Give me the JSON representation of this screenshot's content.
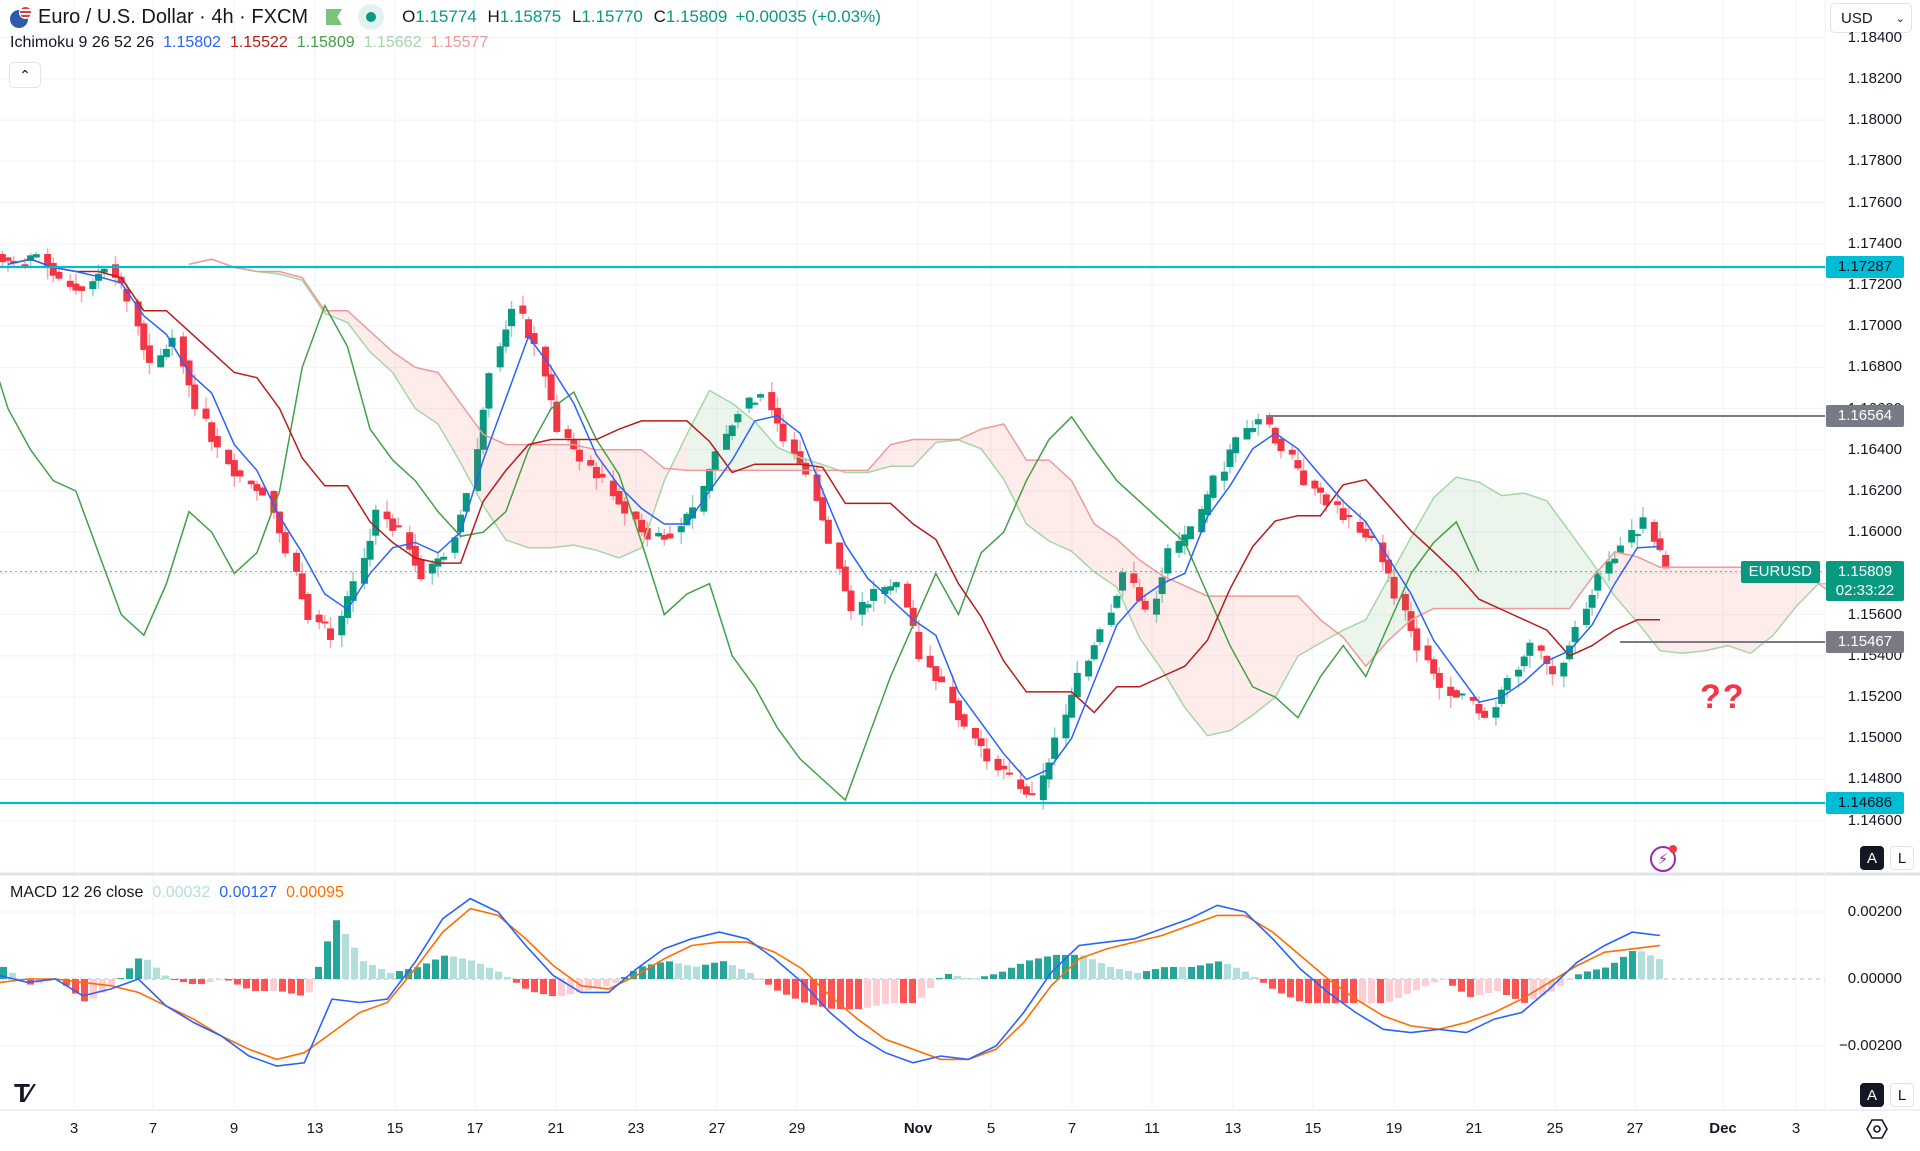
{
  "header": {
    "symbol_title": "Euro / U.S. Dollar · 4h · FXCM",
    "ohlc": {
      "o_label": "O",
      "o": "1.15774",
      "h_label": "H",
      "h": "1.15875",
      "l_label": "L",
      "l": "1.15770",
      "c_label": "C",
      "c": "1.15809"
    },
    "change": "+0.00035 (+0.03%)"
  },
  "ichimoku_legend": {
    "name": "Ichimoku 9 26 52 26",
    "conversion": "1.15802",
    "base": "1.15522",
    "lagging": "1.15809",
    "lead1": "1.15662",
    "lead2": "1.15577"
  },
  "macd_legend": {
    "name": "MACD 12 26 close",
    "histogram": "0.00032",
    "macd": "0.00127",
    "signal": "0.00095"
  },
  "currency_select": "USD",
  "collapse_icon": "chevron-up-icon",
  "symbol_label": "EURUSD",
  "last_price": "1.15809",
  "countdown": "02:33:22",
  "annotation_text": "??",
  "scale_buttons": {
    "auto": "A",
    "log": "L"
  },
  "colors": {
    "up": "#089981",
    "down": "#f23645",
    "conversion": "#2962ff",
    "base": "#b71c1c",
    "lagging": "#43a047",
    "lead1": "#a5d6a7",
    "lead2": "#ef9a9a",
    "hline": "#00bcd4",
    "marker_line": "#787b86",
    "macd": "#2962ff",
    "signal": "#ff6d00"
  },
  "chart_data": [
    {
      "type": "candlestick",
      "title": "Euro / U.S. Dollar · 4h · FXCM",
      "indicators": [
        "Ichimoku 9 26 52 26"
      ],
      "ylabel": "USD",
      "ylim": [
        1.1455,
        1.1845
      ],
      "y_ticks": [
        "1.18400",
        "1.18200",
        "1.18000",
        "1.17800",
        "1.17600",
        "1.17400",
        "1.17200",
        "1.17000",
        "1.16800",
        "1.16600",
        "1.16400",
        "1.16200",
        "1.16000",
        "1.15800",
        "1.15600",
        "1.15400",
        "1.15200",
        "1.15000",
        "1.14800",
        "1.14600"
      ],
      "x_ticks": [
        "3",
        "7",
        "9",
        "13",
        "15",
        "17",
        "21",
        "23",
        "27",
        "29",
        "Nov",
        "5",
        "7",
        "11",
        "13",
        "15",
        "19",
        "21",
        "25",
        "27",
        "Dec",
        "3"
      ],
      "horizontal_levels": [
        {
          "price": 1.17287,
          "label": "1.17287",
          "color": "#00bcd4"
        },
        {
          "price": 1.16564,
          "label": "1.16564",
          "color": "#787b86"
        },
        {
          "price": 1.15467,
          "label": "1.15467",
          "color": "#787b86"
        },
        {
          "price": 1.14686,
          "label": "1.14686",
          "color": "#00bcd4"
        }
      ],
      "last": {
        "open": 1.15774,
        "high": 1.15875,
        "low": 1.1577,
        "close": 1.15809
      },
      "close_path": [
        1.173,
        1.1735,
        1.1722,
        1.1718,
        1.173,
        1.1712,
        1.168,
        1.1695,
        1.166,
        1.164,
        1.1625,
        1.162,
        1.159,
        1.156,
        1.155,
        1.1575,
        1.161,
        1.16,
        1.158,
        1.159,
        1.162,
        1.168,
        1.171,
        1.169,
        1.165,
        1.1635,
        1.1625,
        1.161,
        1.1598,
        1.16,
        1.161,
        1.164,
        1.166,
        1.1668,
        1.1645,
        1.1628,
        1.1595,
        1.156,
        1.157,
        1.1575,
        1.154,
        1.1525,
        1.1505,
        1.149,
        1.148,
        1.147,
        1.15,
        1.153,
        1.1555,
        1.158,
        1.156,
        1.159,
        1.16,
        1.1625,
        1.1645,
        1.1656,
        1.164,
        1.1625,
        1.1615,
        1.1605,
        1.1595,
        1.157,
        1.1545,
        1.1525,
        1.152,
        1.151,
        1.153,
        1.1545,
        1.153,
        1.1555,
        1.158,
        1.1595,
        1.1605,
        1.1581
      ],
      "ichimoku": {
        "conversion": "blue",
        "base": "dark-red",
        "lagging": "green",
        "cloud": "green/red Senkou A/B"
      }
    },
    {
      "type": "line+bar",
      "title": "MACD 12 26 close",
      "ylim": [
        -0.0029,
        0.0027
      ],
      "y_ticks": [
        "0.00200",
        "0.00000",
        "−0.00200"
      ],
      "series": [
        {
          "name": "MACD",
          "color": "#2962ff",
          "values": [
            0.0001,
            -0.0001,
            0.0,
            -0.0005,
            -0.0003,
            0.0,
            -0.0008,
            -0.0013,
            -0.0017,
            -0.0023,
            -0.0026,
            -0.0025,
            -0.0006,
            -0.0007,
            -0.0006,
            0.0005,
            0.0018,
            0.0024,
            0.002,
            0.001,
            0.0001,
            -0.0004,
            -0.0004,
            0.0003,
            0.0009,
            0.0012,
            0.0014,
            0.0012,
            0.0006,
            -0.0001,
            -0.001,
            -0.0017,
            -0.0022,
            -0.0025,
            -0.0023,
            -0.0024,
            -0.002,
            -0.001,
            0.0002,
            0.001,
            0.0011,
            0.0012,
            0.0015,
            0.0018,
            0.0022,
            0.002,
            0.0012,
            0.0003,
            -0.0004,
            -0.001,
            -0.0015,
            -0.0016,
            -0.0015,
            -0.0016,
            -0.0012,
            -0.001,
            -0.0003,
            0.0005,
            0.001,
            0.0014,
            0.0013
          ]
        },
        {
          "name": "Signal",
          "color": "#ff6d00",
          "values": [
            -0.0001,
            0.0,
            0.0,
            -0.0001,
            -0.0002,
            -0.0004,
            -0.0008,
            -0.0012,
            -0.0017,
            -0.0021,
            -0.0024,
            -0.0022,
            -0.0016,
            -0.001,
            -0.0007,
            0.0003,
            0.0014,
            0.0021,
            0.0019,
            0.0012,
            0.0004,
            -0.0002,
            -0.0003,
            0.0001,
            0.0006,
            0.001,
            0.0011,
            0.0011,
            0.0008,
            0.0003,
            -0.0005,
            -0.0012,
            -0.0018,
            -0.0021,
            -0.0024,
            -0.0024,
            -0.0021,
            -0.0013,
            -0.0002,
            0.0006,
            0.0009,
            0.0011,
            0.0013,
            0.0016,
            0.0019,
            0.0019,
            0.0014,
            0.0007,
            0.0,
            -0.0006,
            -0.0011,
            -0.0014,
            -0.0015,
            -0.0013,
            -0.001,
            -0.0006,
            -0.0001,
            0.0004,
            0.0008,
            0.0009,
            0.001
          ]
        },
        {
          "name": "Histogram",
          "last": 0.00032
        }
      ]
    }
  ]
}
